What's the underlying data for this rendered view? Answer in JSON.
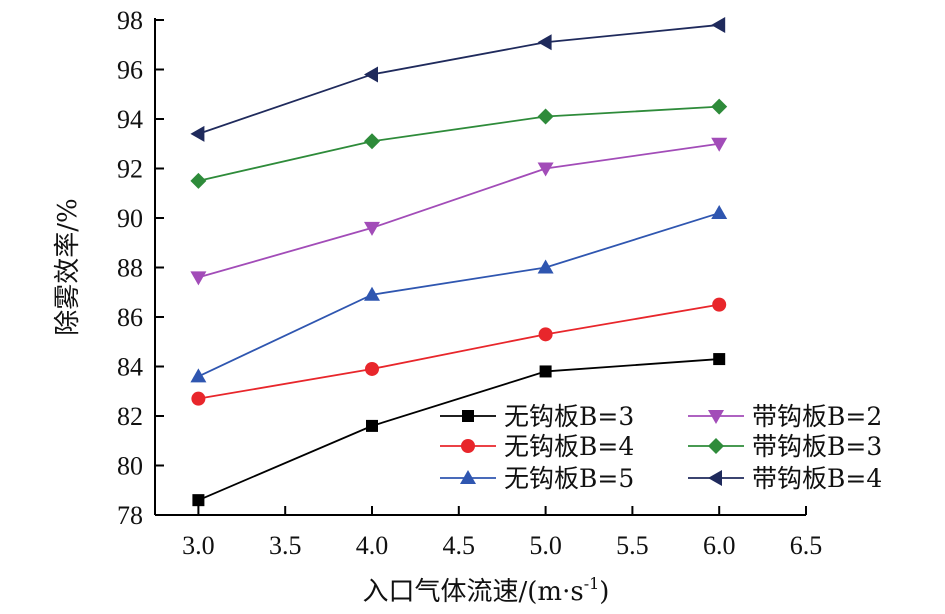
{
  "chart_data": {
    "type": "line",
    "title": "",
    "xlabel": "入口气体流速/(m·s",
    "xlabel_sup": "-1",
    "xlabel_tail": ")",
    "ylabel": "除雾效率/%",
    "xlim": [
      2.75,
      6.5
    ],
    "ylim": [
      78,
      98
    ],
    "x_ticks": [
      "3.0",
      "3.5",
      "4.0",
      "4.5",
      "5.0",
      "5.5",
      "6.0",
      "6.5"
    ],
    "y_ticks": [
      "78",
      "80",
      "82",
      "84",
      "86",
      "88",
      "90",
      "92",
      "94",
      "96",
      "98"
    ],
    "grid": false,
    "legend_position": "bottom-right",
    "x": [
      3.0,
      4.0,
      5.0,
      6.0
    ],
    "series": [
      {
        "name": "无钩板B=3",
        "values": [
          78.6,
          81.6,
          83.8,
          84.3
        ],
        "color": "#000000",
        "marker": "square"
      },
      {
        "name": "无钩板B=4",
        "values": [
          82.7,
          83.9,
          85.3,
          86.5
        ],
        "color": "#e8262b",
        "marker": "circle"
      },
      {
        "name": "无钩板B=5",
        "values": [
          83.6,
          86.9,
          88.0,
          90.2
        ],
        "color": "#2f56b0",
        "marker": "triangle-up"
      },
      {
        "name": "带钩板B=2",
        "values": [
          87.6,
          89.6,
          92.0,
          93.0
        ],
        "color": "#a24cb8",
        "marker": "triangle-down"
      },
      {
        "name": "带钩板B=3",
        "values": [
          91.5,
          93.1,
          94.1,
          94.5
        ],
        "color": "#2e8b3a",
        "marker": "diamond"
      },
      {
        "name": "带钩板B=4",
        "values": [
          93.4,
          95.8,
          97.1,
          97.8
        ],
        "color": "#1f2a5c",
        "marker": "triangle-left"
      }
    ]
  }
}
